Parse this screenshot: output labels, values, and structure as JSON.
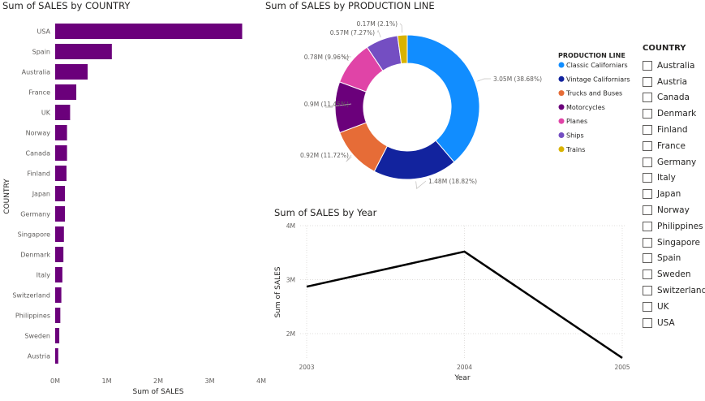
{
  "bar_chart": {
    "chart_data": {
      "type": "bar",
      "orientation": "horizontal",
      "title": "Sum of SALES by COUNTRY",
      "xlabel": "Sum of SALES",
      "ylabel": "COUNTRY",
      "categories": [
        "USA",
        "Spain",
        "Australia",
        "France",
        "UK",
        "Norway",
        "Canada",
        "Finland",
        "Japan",
        "Germany",
        "Singapore",
        "Denmark",
        "Italy",
        "Switzerland",
        "Philippines",
        "Sweden",
        "Austria"
      ],
      "values": [
        3630000,
        1100000,
        630000,
        410000,
        290000,
        230000,
        230000,
        220000,
        190000,
        190000,
        170000,
        160000,
        140000,
        120000,
        100000,
        80000,
        60000
      ],
      "xlim": [
        0,
        4000000
      ],
      "ticks": [
        0,
        1000000,
        2000000,
        3000000,
        4000000
      ],
      "tick_labels": [
        "0M",
        "1M",
        "2M",
        "3M",
        "4M"
      ],
      "grid": false,
      "color": "#6B007B"
    }
  },
  "donut_chart": {
    "chart_data": {
      "type": "pie",
      "style": "donut",
      "title": "Sum of SALES by PRODUCTION LINE",
      "legend_title": "PRODUCTION LINE",
      "legend_position": "right",
      "labels": [
        "Classic Californiars",
        "Vintage Californiars",
        "Trucks and Buses",
        "Motorcycles",
        "Planes",
        "Ships",
        "Trains"
      ],
      "values": [
        3.05,
        1.48,
        0.92,
        0.9,
        0.78,
        0.57,
        0.17
      ],
      "percentages": [
        38.68,
        18.82,
        11.72,
        11.45,
        9.96,
        7.27,
        2.1
      ],
      "data_labels": [
        "3.05M (38.68%)",
        "1.48M (18.82%)",
        "0.92M (11.72%)",
        "0.9M (11.45%)",
        "0.78M (9.96%)",
        "0.57M (7.27%)",
        "0.17M (2.1%)"
      ],
      "colors": [
        "#118DFF",
        "#12239E",
        "#E66C37",
        "#6B007B",
        "#E044A7",
        "#744EC2",
        "#D9B300"
      ]
    }
  },
  "line_chart": {
    "chart_data": {
      "type": "line",
      "title": "Sum of SALES by Year",
      "xlabel": "Year",
      "ylabel": "Sum of SALES",
      "x": [
        "2003",
        "2004",
        "2005"
      ],
      "values": [
        2.87,
        3.52,
        1.55
      ],
      "ylim": [
        1.55,
        4.0
      ],
      "yticks": [
        2,
        3,
        4
      ],
      "ytick_labels": [
        "2M",
        "3M",
        "4M"
      ],
      "grid": true,
      "color": "#000000"
    }
  },
  "slicer": {
    "title": "COUNTRY",
    "items": [
      "Australia",
      "Austria",
      "Canada",
      "Denmark",
      "Finland",
      "France",
      "Germany",
      "Italy",
      "Japan",
      "Norway",
      "Philippines",
      "Singapore",
      "Spain",
      "Sweden",
      "Switzerland",
      "UK",
      "USA"
    ]
  }
}
